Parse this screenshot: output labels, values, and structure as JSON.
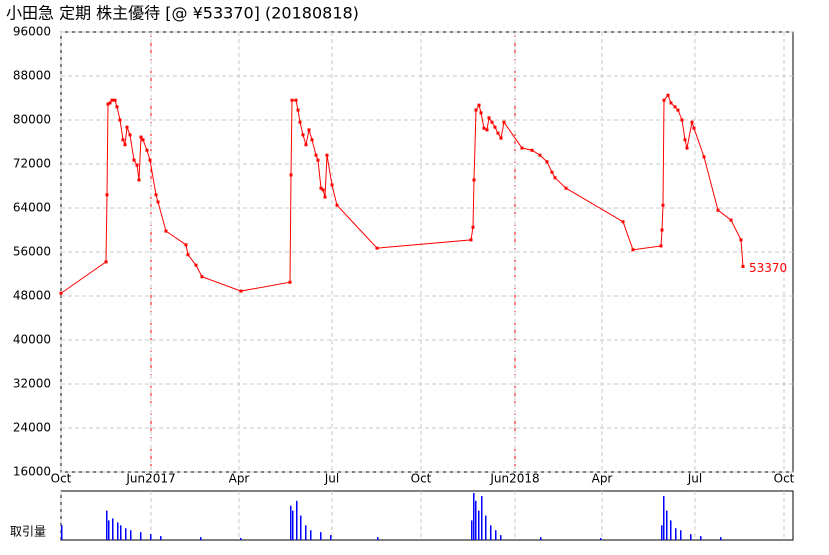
{
  "chart_data": {
    "type": "line",
    "title": "小田急 定期 株主優待  [@ ¥53370] (20180818)",
    "xlim": [
      0,
      732
    ],
    "xticks": [
      {
        "value": 0,
        "label": "Oct"
      },
      {
        "value": 90,
        "label": "Jun2017"
      },
      {
        "value": 178,
        "label": "Apr"
      },
      {
        "value": 271,
        "label": "Jul"
      },
      {
        "value": 360,
        "label": "Oct"
      },
      {
        "value": 454,
        "label": "Jun2018"
      },
      {
        "value": 541,
        "label": "Apr"
      },
      {
        "value": 634,
        "label": "Jul"
      },
      {
        "value": 723,
        "label": "Oct"
      }
    ],
    "ylim": [
      16000,
      96000
    ],
    "yticks": [
      16000,
      24000,
      32000,
      40000,
      48000,
      56000,
      64000,
      72000,
      80000,
      88000,
      96000
    ],
    "grid": true,
    "series": [
      {
        "color": "#ff0000",
        "x": [
          0,
          45,
          46,
          47,
          49,
          51,
          54,
          56,
          59,
          62,
          64,
          66,
          69,
          73,
          76,
          78,
          80,
          82,
          86,
          89,
          95,
          97,
          105,
          125,
          127,
          135,
          141,
          180,
          229,
          230,
          231,
          235,
          237,
          239,
          242,
          245,
          248,
          251,
          255,
          257,
          260,
          262,
          264,
          266,
          271,
          276,
          316,
          410,
          412,
          413,
          415,
          418,
          420,
          423,
          426,
          428,
          431,
          434,
          437,
          440,
          443,
          461,
          471,
          479,
          486,
          491,
          494,
          505,
          562,
          572,
          600,
          601,
          602,
          603,
          607,
          610,
          614,
          617,
          621,
          624,
          626,
          631,
          633,
          643,
          657,
          670,
          680,
          682
        ],
        "values": [
          48500,
          54200,
          66400,
          82900,
          83100,
          83600,
          83600,
          82400,
          80000,
          76400,
          75500,
          78700,
          77300,
          72700,
          71800,
          69100,
          76900,
          76400,
          74500,
          72700,
          66400,
          65100,
          59800,
          57300,
          55500,
          53600,
          51500,
          48900,
          50500,
          70000,
          83600,
          83600,
          81800,
          79600,
          77300,
          75500,
          78200,
          76400,
          73600,
          72700,
          67600,
          67300,
          66000,
          73600,
          68200,
          64500,
          56700,
          58200,
          60500,
          69100,
          81800,
          82700,
          81300,
          78500,
          78200,
          80400,
          79600,
          78700,
          77600,
          76700,
          79600,
          74900,
          74500,
          73600,
          72400,
          70500,
          69500,
          67600,
          61500,
          56400,
          57100,
          60000,
          64500,
          83600,
          84500,
          83100,
          82400,
          81800,
          80000,
          76400,
          74900,
          79600,
          78500,
          73300,
          63600,
          61800,
          58200,
          53370
        ]
      }
    ],
    "volume": {
      "label": "取引量",
      "x": [
        0,
        45,
        47,
        51,
        56,
        59,
        64,
        69,
        79,
        89,
        99,
        139,
        179,
        229,
        231,
        235,
        239,
        244,
        249,
        259,
        269,
        316,
        410,
        412,
        414,
        417,
        420,
        424,
        429,
        434,
        439,
        479,
        539,
        600,
        602,
        605,
        609,
        614,
        619,
        629,
        639,
        659
      ],
      "values": [
        15,
        30,
        20,
        22,
        18,
        15,
        12,
        10,
        8,
        6,
        4,
        3,
        2,
        35,
        30,
        40,
        25,
        15,
        10,
        8,
        5,
        3,
        20,
        48,
        40,
        30,
        45,
        25,
        15,
        10,
        5,
        3,
        2,
        15,
        45,
        30,
        20,
        12,
        10,
        6,
        4,
        3
      ]
    }
  }
}
